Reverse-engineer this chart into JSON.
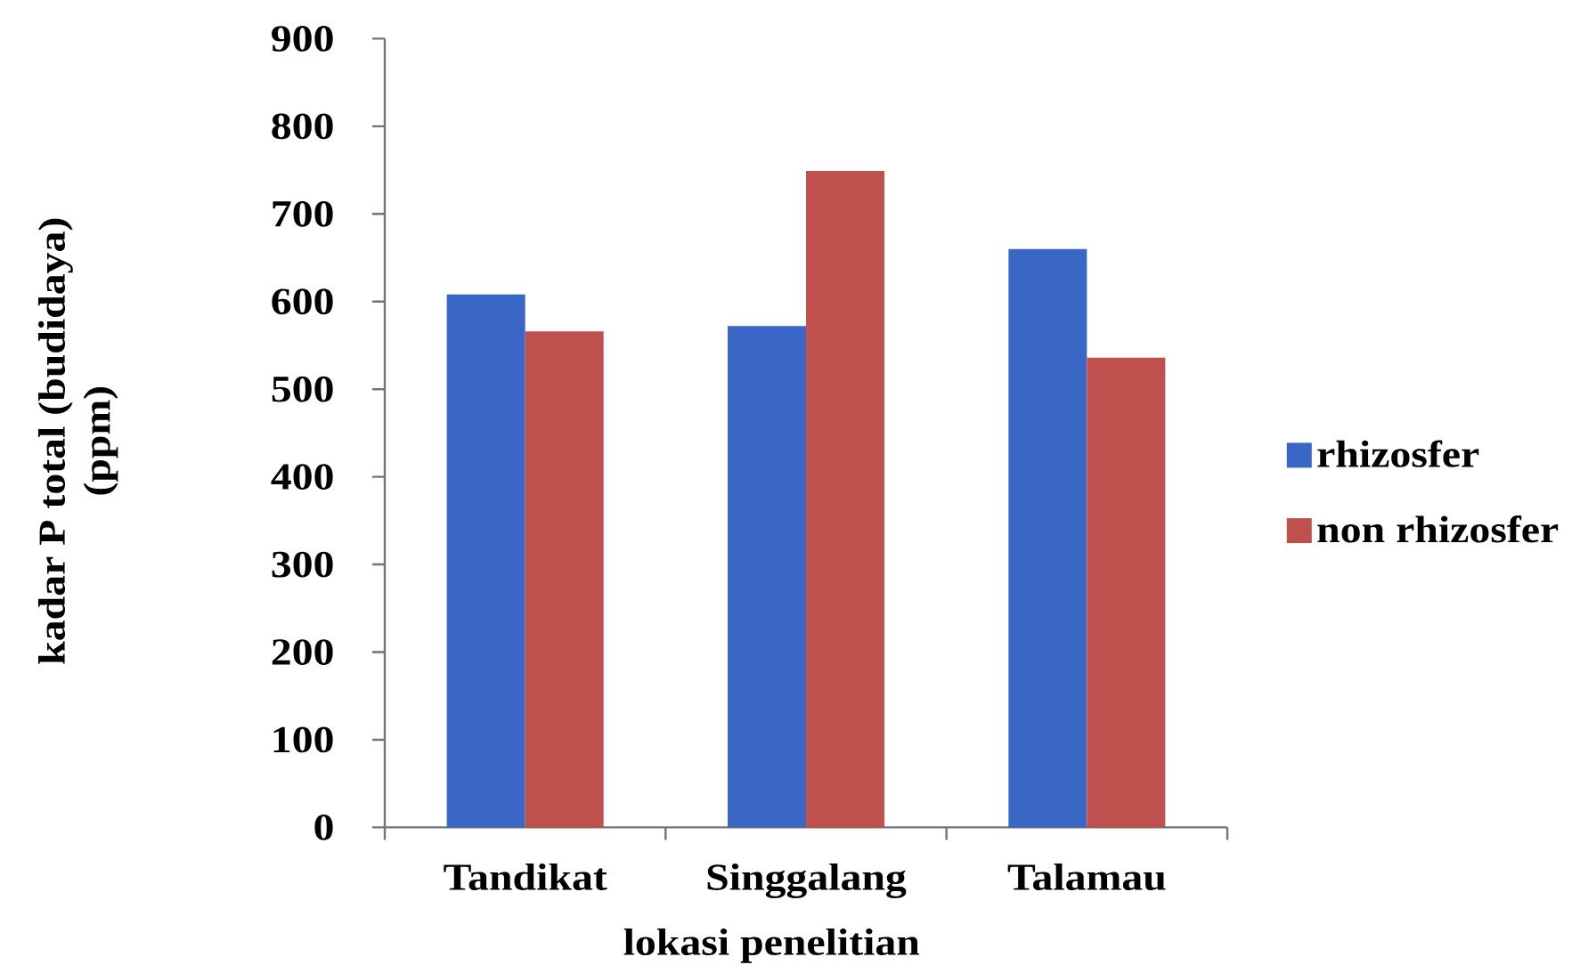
{
  "chart_data": {
    "type": "bar",
    "xlabel": "lokasi penelitian",
    "ylabel": "kadar P total (budidaya) (ppm)",
    "categories": [
      "Tandikat",
      "Singgalang",
      "Talamau"
    ],
    "series": [
      {
        "name": "rhizosfer",
        "color": "#3a66c6",
        "values": [
          608,
          572,
          660
        ]
      },
      {
        "name": "non rhizosfer",
        "color": "#c0504d",
        "values": [
          566,
          749,
          536
        ]
      }
    ],
    "ylim": [
      0,
      900
    ],
    "yticks": [
      0,
      100,
      200,
      300,
      400,
      500,
      600,
      700,
      800,
      900
    ],
    "legend": "right"
  }
}
